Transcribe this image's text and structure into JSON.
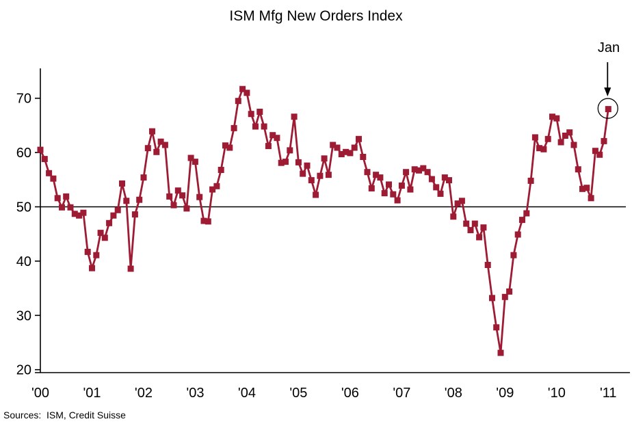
{
  "page": {
    "background": "#ffffff"
  },
  "chart_data": {
    "type": "line",
    "title": "ISM Mfg New Orders Index",
    "series_name": "ISM Manufacturing New Orders Index",
    "series_color": "#9E1B34",
    "marker": "square",
    "grid": "off",
    "ref_line_value": 50,
    "ylim": [
      19,
      75.5
    ],
    "yticks": [
      20,
      30,
      40,
      50,
      60,
      70
    ],
    "x_tick_labels": [
      "'00",
      "'01",
      "'02",
      "'03",
      "'04",
      "'05",
      "'06",
      "'07",
      "'08",
      "'09",
      "'10",
      "'11"
    ],
    "start_month": "2000-01",
    "end_month": "2011-01",
    "frequency": "monthly",
    "values": [
      60.5,
      58.8,
      56.2,
      55.2,
      51.6,
      49.9,
      51.9,
      49.9,
      48.7,
      48.4,
      48.9,
      41.7,
      38.7,
      41.1,
      45.2,
      44.3,
      47.0,
      48.4,
      49.4,
      54.3,
      51.1,
      38.6,
      48.6,
      51.3,
      55.4,
      60.8,
      63.9,
      60.1,
      62.0,
      61.4,
      51.9,
      50.3,
      53.0,
      52.1,
      49.7,
      59.0,
      58.3,
      51.8,
      47.4,
      47.3,
      53.2,
      53.8,
      56.8,
      61.3,
      60.9,
      64.5,
      69.5,
      71.7,
      71.0,
      67.1,
      64.8,
      67.5,
      64.8,
      61.2,
      63.2,
      62.7,
      58.1,
      58.3,
      60.4,
      66.6,
      58.2,
      56.1,
      57.6,
      54.9,
      52.2,
      55.7,
      58.9,
      55.9,
      61.4,
      60.9,
      59.7,
      60.1,
      59.9,
      60.9,
      62.5,
      59.2,
      56.4,
      53.4,
      55.9,
      55.4,
      52.5,
      54.1,
      52.3,
      51.2,
      53.9,
      56.4,
      53.2,
      56.9,
      56.7,
      57.1,
      56.4,
      55.1,
      53.6,
      52.4,
      55.4,
      54.9,
      48.2,
      50.6,
      51.1,
      46.9,
      45.7,
      46.9,
      44.4,
      46.2,
      39.3,
      33.2,
      27.8,
      23.1,
      33.4,
      34.4,
      41.1,
      44.9,
      47.6,
      48.8,
      54.8,
      62.8,
      60.8,
      60.6,
      62.5,
      66.6,
      66.3,
      61.9,
      63.1,
      63.7,
      61.4,
      56.9,
      53.3,
      53.5,
      51.6,
      60.3,
      59.6,
      62.1,
      68.0
    ],
    "annotation": {
      "label": "Jan",
      "points_to": "2011-01",
      "value": 68.0,
      "circled": true
    }
  },
  "footer": {
    "sources": "Sources:  ISM, Credit Suisse"
  }
}
